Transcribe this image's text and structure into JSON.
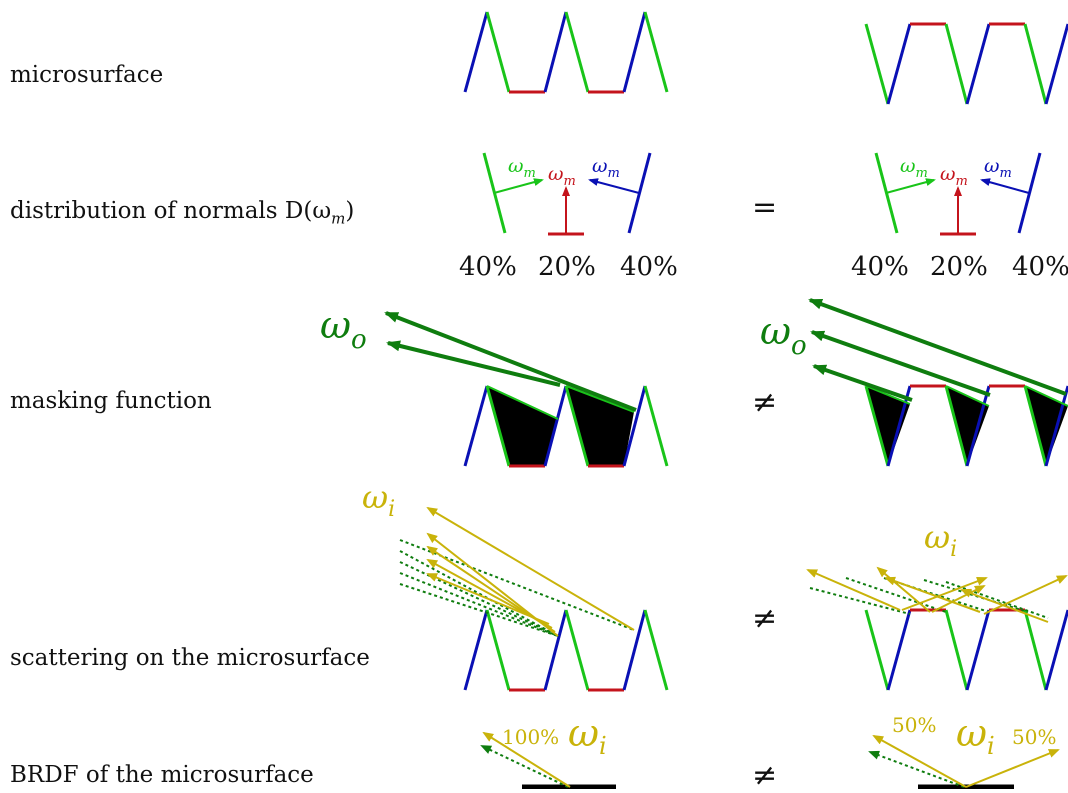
{
  "rows": {
    "r1": "microsurface",
    "r2": "distribution of normals D(ω",
    "r2_sub": "m",
    "r2_end": ")",
    "r3": "masking function",
    "r4": "scattering on the microsurface",
    "r5": "BRDF of the microsurface"
  },
  "relations": {
    "r2": "=",
    "r3": "≠",
    "r4": "≠",
    "r5": "≠"
  },
  "normals": {
    "symbol": "ω",
    "sub": "m",
    "left_pct": "40%",
    "mid_pct": "20%",
    "right_pct": "40%"
  },
  "masking": {
    "symbol": "ω",
    "sub": "o"
  },
  "scattering": {
    "symbol": "ω",
    "sub": "i"
  },
  "brdf": {
    "symbol": "ω",
    "sub": "i",
    "left_value": "100%",
    "right_left_pct": "50%",
    "right_right_pct": "50%"
  },
  "colors": {
    "green": "#19c419",
    "blue": "#0a10b4",
    "red": "#c4141c",
    "darkgreen": "#0f7d0f",
    "yellow": "#c9b30a",
    "black": "#000000"
  }
}
